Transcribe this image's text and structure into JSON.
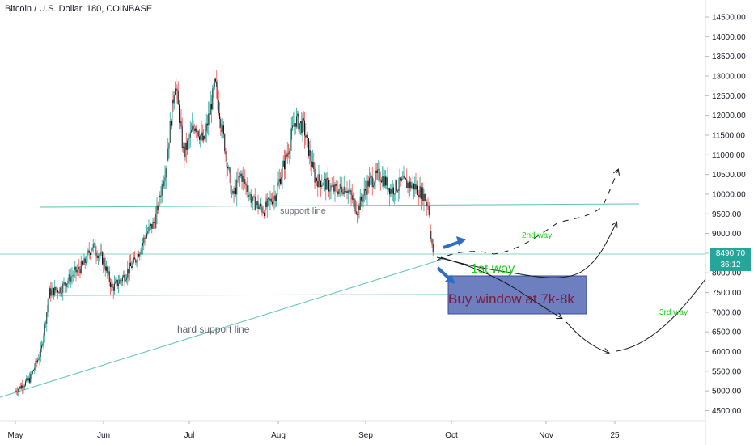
{
  "header": {
    "title": "Bitcoin / U.S. Dollar, 180, COINBASE"
  },
  "price_tag": {
    "last_price": "8490.70",
    "countdown": "36:12"
  },
  "annotations": {
    "support_line": "support line",
    "hard_support_line": "hard support line",
    "buy_window": "Buy window at 7k-8k",
    "first_way": "1st way",
    "second_way": "2nd way",
    "third_way": "3rd way"
  },
  "colors": {
    "up_candle": "#26a69a",
    "down_candle": "#ef5350",
    "candle_body": "#131722",
    "support": "#5cc4b0",
    "buy_box_fill": "#5468b4",
    "buy_box_text": "#7a1b3a",
    "green_text": "#1ed01e",
    "arrow_blue": "#2e6fc4"
  },
  "chart_data": {
    "type": "candlestick",
    "title": "Bitcoin / U.S. Dollar, 180, COINBASE",
    "y_ticks": [
      "4500.00",
      "5000.00",
      "5500.00",
      "6000.00",
      "6500.00",
      "7000.00",
      "7500.00",
      "8000.00",
      "8500.00",
      "9000.00",
      "9500.00",
      "10000.00",
      "10500.00",
      "11000.00",
      "11500.00",
      "12000.00",
      "12500.00",
      "13000.00",
      "13500.00",
      "14000.00",
      "14500.00"
    ],
    "x_ticks": [
      "May",
      "Jun",
      "Jul",
      "Aug",
      "Sep",
      "Oct",
      "Nov",
      "25"
    ],
    "ylim": [
      4200,
      14800
    ],
    "price_path": [
      [
        "May 1",
        5000
      ],
      [
        "May 6",
        5300
      ],
      [
        "May 10",
        6000
      ],
      [
        "May 13",
        7500
      ],
      [
        "May 17",
        7600
      ],
      [
        "May 21",
        7950
      ],
      [
        "May 25",
        8200
      ],
      [
        "May 28",
        8700
      ],
      [
        "Jun 1",
        8300
      ],
      [
        "Jun 4",
        7600
      ],
      [
        "Jun 8",
        7900
      ],
      [
        "Jun 12",
        8300
      ],
      [
        "Jun 16",
        9000
      ],
      [
        "Jun 19",
        9300
      ],
      [
        "Jun 23",
        10800
      ],
      [
        "Jun 26",
        12900
      ],
      [
        "Jun 29",
        11000
      ],
      [
        "Jul 3",
        11800
      ],
      [
        "Jul 6",
        11300
      ],
      [
        "Jul 10",
        12800
      ],
      [
        "Jul 13",
        11400
      ],
      [
        "Jul 16",
        9900
      ],
      [
        "Jul 19",
        10500
      ],
      [
        "Jul 23",
        9800
      ],
      [
        "Jul 27",
        9600
      ],
      [
        "Jul 31",
        10000
      ],
      [
        "Aug 4",
        11000
      ],
      [
        "Aug 7",
        11900
      ],
      [
        "Aug 10",
        11700
      ],
      [
        "Aug 14",
        10400
      ],
      [
        "Aug 17",
        10300
      ],
      [
        "Aug 21",
        10100
      ],
      [
        "Aug 25",
        10200
      ],
      [
        "Aug 29",
        9600
      ],
      [
        "Sep 2",
        10300
      ],
      [
        "Sep 6",
        10500
      ],
      [
        "Sep 10",
        10100
      ],
      [
        "Sep 14",
        10300
      ],
      [
        "Sep 18",
        10200
      ],
      [
        "Sep 21",
        10000
      ],
      [
        "Sep 23",
        9700
      ],
      [
        "Sep 24",
        8700
      ],
      [
        "Sep 25",
        8400
      ]
    ],
    "horizontal_levels": [
      {
        "name": "support line",
        "value": 9700
      },
      {
        "name": "current level",
        "value": 8490.7
      },
      {
        "name": "lower level",
        "value": 7420
      }
    ],
    "trendline": {
      "name": "hard support line",
      "from": [
        "Apr 25",
        4800
      ],
      "to": [
        "Oct 1",
        8600
      ]
    },
    "buy_window": {
      "name": "Buy window at 7k-8k",
      "low": 7000,
      "high": 7950,
      "from": "Sep 25",
      "to": "Nov 22"
    }
  }
}
